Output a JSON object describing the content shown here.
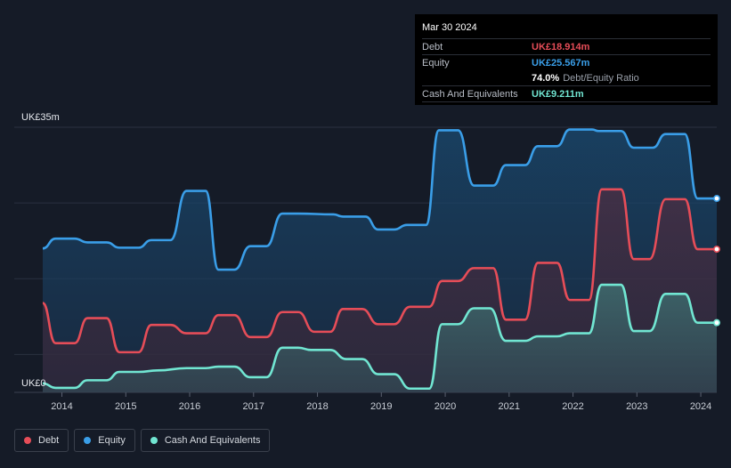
{
  "tooltip": {
    "date": "Mar 30 2024",
    "debt_label": "Debt",
    "debt_value": "UK£18.914m",
    "equity_label": "Equity",
    "equity_value": "UK£25.567m",
    "ratio_value": "74.0%",
    "ratio_label": "Debt/Equity Ratio",
    "cash_label": "Cash And Equivalents",
    "cash_value": "UK£9.211m"
  },
  "legend": [
    {
      "label": "Debt",
      "color": "#e64d58"
    },
    {
      "label": "Equity",
      "color": "#3a9ee8"
    },
    {
      "label": "Cash And Equivalents",
      "color": "#71e6d2"
    }
  ],
  "chart_data": {
    "type": "area",
    "title": "",
    "xlabel": "",
    "ylabel": "",
    "y_top_label": "UK£35m",
    "y_bottom_label": "UK£0",
    "ylim": [
      0,
      35
    ],
    "xlim": [
      2013.7,
      2024.25
    ],
    "x_ticks": [
      "2014",
      "2015",
      "2016",
      "2017",
      "2018",
      "2019",
      "2020",
      "2021",
      "2022",
      "2023",
      "2024"
    ],
    "grid": true,
    "legend_position": "bottom-left",
    "series": [
      {
        "name": "Equity",
        "color": "#3a9ee8",
        "points": [
          [
            2013.7,
            19
          ],
          [
            2013.9,
            20.3
          ],
          [
            2014.2,
            20.3
          ],
          [
            2014.4,
            19.8
          ],
          [
            2014.7,
            19.8
          ],
          [
            2014.9,
            19.1
          ],
          [
            2015.2,
            19.1
          ],
          [
            2015.4,
            20.1
          ],
          [
            2015.7,
            20.1
          ],
          [
            2015.95,
            26.6
          ],
          [
            2016.25,
            26.6
          ],
          [
            2016.45,
            16.2
          ],
          [
            2016.7,
            16.2
          ],
          [
            2016.95,
            19.3
          ],
          [
            2017.2,
            19.3
          ],
          [
            2017.45,
            23.6
          ],
          [
            2017.7,
            23.6
          ],
          [
            2018.25,
            23.5
          ],
          [
            2018.4,
            23.2
          ],
          [
            2018.75,
            23.2
          ],
          [
            2018.95,
            21.5
          ],
          [
            2019.2,
            21.5
          ],
          [
            2019.4,
            22.1
          ],
          [
            2019.7,
            22.1
          ],
          [
            2019.9,
            34.6
          ],
          [
            2020.2,
            34.6
          ],
          [
            2020.45,
            27.3
          ],
          [
            2020.75,
            27.3
          ],
          [
            2020.95,
            30
          ],
          [
            2021.25,
            30
          ],
          [
            2021.45,
            32.5
          ],
          [
            2021.75,
            32.5
          ],
          [
            2021.95,
            34.7
          ],
          [
            2022.3,
            34.7
          ],
          [
            2022.4,
            34.5
          ],
          [
            2022.75,
            34.5
          ],
          [
            2022.95,
            32.3
          ],
          [
            2023.25,
            32.3
          ],
          [
            2023.45,
            34.1
          ],
          [
            2023.75,
            34.1
          ],
          [
            2023.95,
            25.6
          ],
          [
            2024.25,
            25.6
          ]
        ]
      },
      {
        "name": "Debt",
        "color": "#e64d58",
        "points": [
          [
            2013.7,
            11.8
          ],
          [
            2013.9,
            6.5
          ],
          [
            2014.2,
            6.5
          ],
          [
            2014.4,
            9.8
          ],
          [
            2014.7,
            9.8
          ],
          [
            2014.9,
            5.3
          ],
          [
            2015.2,
            5.3
          ],
          [
            2015.4,
            8.9
          ],
          [
            2015.7,
            8.9
          ],
          [
            2015.95,
            7.8
          ],
          [
            2016.25,
            7.8
          ],
          [
            2016.45,
            10.2
          ],
          [
            2016.7,
            10.2
          ],
          [
            2016.95,
            7.3
          ],
          [
            2017.2,
            7.3
          ],
          [
            2017.45,
            10.6
          ],
          [
            2017.7,
            10.6
          ],
          [
            2017.95,
            8
          ],
          [
            2018.2,
            8
          ],
          [
            2018.4,
            11
          ],
          [
            2018.7,
            11
          ],
          [
            2018.95,
            9
          ],
          [
            2019.2,
            9
          ],
          [
            2019.45,
            11.3
          ],
          [
            2019.75,
            11.3
          ],
          [
            2019.95,
            14.7
          ],
          [
            2020.2,
            14.7
          ],
          [
            2020.45,
            16.4
          ],
          [
            2020.75,
            16.4
          ],
          [
            2020.95,
            9.6
          ],
          [
            2021.25,
            9.6
          ],
          [
            2021.45,
            17.1
          ],
          [
            2021.75,
            17.1
          ],
          [
            2021.95,
            12.2
          ],
          [
            2022.25,
            12.2
          ],
          [
            2022.45,
            26.8
          ],
          [
            2022.75,
            26.8
          ],
          [
            2022.95,
            17.6
          ],
          [
            2023.2,
            17.6
          ],
          [
            2023.45,
            25.5
          ],
          [
            2023.75,
            25.5
          ],
          [
            2023.95,
            18.9
          ],
          [
            2024.25,
            18.9
          ]
        ]
      },
      {
        "name": "Cash And Equivalents",
        "color": "#71e6d2",
        "points": [
          [
            2013.7,
            1.2
          ],
          [
            2013.9,
            0.6
          ],
          [
            2014.2,
            0.6
          ],
          [
            2014.4,
            1.6
          ],
          [
            2014.7,
            1.6
          ],
          [
            2014.9,
            2.7
          ],
          [
            2015.2,
            2.7
          ],
          [
            2015.5,
            2.9
          ],
          [
            2015.95,
            3.2
          ],
          [
            2016.25,
            3.2
          ],
          [
            2016.45,
            3.4
          ],
          [
            2016.7,
            3.4
          ],
          [
            2016.95,
            2
          ],
          [
            2017.2,
            2
          ],
          [
            2017.45,
            5.9
          ],
          [
            2017.7,
            5.9
          ],
          [
            2017.9,
            5.6
          ],
          [
            2018.2,
            5.6
          ],
          [
            2018.45,
            4.4
          ],
          [
            2018.7,
            4.4
          ],
          [
            2018.95,
            2.4
          ],
          [
            2019.2,
            2.4
          ],
          [
            2019.45,
            0.5
          ],
          [
            2019.75,
            0.5
          ],
          [
            2019.95,
            9
          ],
          [
            2020.2,
            9
          ],
          [
            2020.45,
            11.1
          ],
          [
            2020.7,
            11.1
          ],
          [
            2020.95,
            6.8
          ],
          [
            2021.25,
            6.8
          ],
          [
            2021.45,
            7.4
          ],
          [
            2021.75,
            7.4
          ],
          [
            2021.95,
            7.8
          ],
          [
            2022.25,
            7.8
          ],
          [
            2022.45,
            14.2
          ],
          [
            2022.75,
            14.2
          ],
          [
            2022.95,
            8.1
          ],
          [
            2023.2,
            8.1
          ],
          [
            2023.45,
            13
          ],
          [
            2023.75,
            13
          ],
          [
            2023.95,
            9.2
          ],
          [
            2024.25,
            9.2
          ]
        ]
      }
    ]
  }
}
